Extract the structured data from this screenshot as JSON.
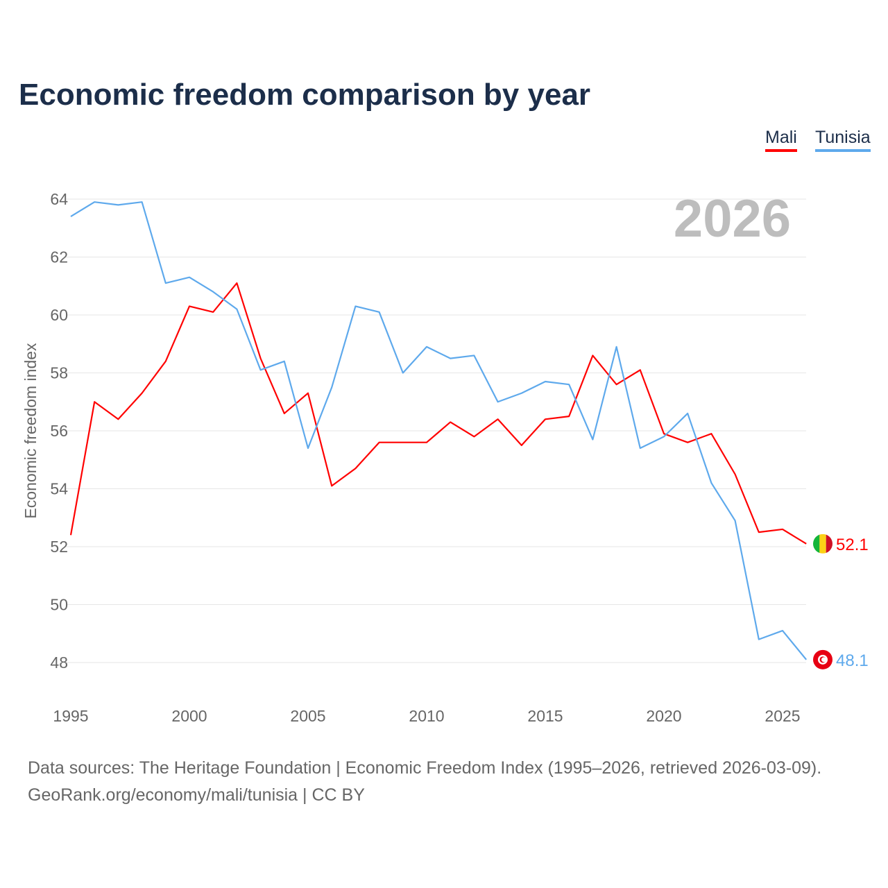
{
  "title": "Economic freedom comparison by year",
  "source_line1": "Data sources: The Heritage Foundation | Economic Freedom Index (1995–2026, retrieved 2026-03-09).",
  "source_line2": "GeoRank.org/economy/mali/tunisia | CC BY",
  "chart_data": {
    "type": "line",
    "title": "Economic freedom comparison by year",
    "xlabel": "",
    "ylabel": "Economic freedom index",
    "xlim": [
      1995,
      2026
    ],
    "ylim": [
      47,
      64.5
    ],
    "yticks": [
      48,
      50,
      52,
      54,
      56,
      58,
      60,
      62,
      64
    ],
    "xticks": [
      1995,
      2000,
      2005,
      2010,
      2015,
      2020,
      2025
    ],
    "grid": true,
    "legend": "top-right",
    "year_label": "2026",
    "x": [
      1995,
      1996,
      1997,
      1998,
      1999,
      2000,
      2001,
      2002,
      2003,
      2004,
      2005,
      2006,
      2007,
      2008,
      2009,
      2010,
      2011,
      2012,
      2013,
      2014,
      2015,
      2016,
      2017,
      2018,
      2019,
      2020,
      2021,
      2022,
      2023,
      2024,
      2025,
      2026
    ],
    "series": [
      {
        "name": "Mali",
        "color": "#ff0000",
        "end_label": "52.1",
        "values": [
          52.4,
          57.0,
          56.4,
          57.3,
          58.4,
          60.3,
          60.1,
          61.1,
          58.5,
          56.6,
          57.3,
          54.1,
          54.7,
          55.6,
          55.6,
          55.6,
          56.3,
          55.8,
          56.4,
          55.5,
          56.4,
          56.5,
          58.6,
          57.6,
          58.1,
          55.9,
          55.6,
          55.9,
          54.5,
          52.5,
          52.6,
          52.1
        ]
      },
      {
        "name": "Tunisia",
        "color": "#5ea9ec",
        "end_label": "48.1",
        "values": [
          63.4,
          63.9,
          63.8,
          63.9,
          61.1,
          61.3,
          60.8,
          60.2,
          58.1,
          58.4,
          55.4,
          57.5,
          60.3,
          60.1,
          58.0,
          58.9,
          58.5,
          58.6,
          57.0,
          57.3,
          57.7,
          57.6,
          55.7,
          58.9,
          55.4,
          55.8,
          56.6,
          54.2,
          52.9,
          48.8,
          49.1,
          48.1
        ]
      }
    ]
  }
}
